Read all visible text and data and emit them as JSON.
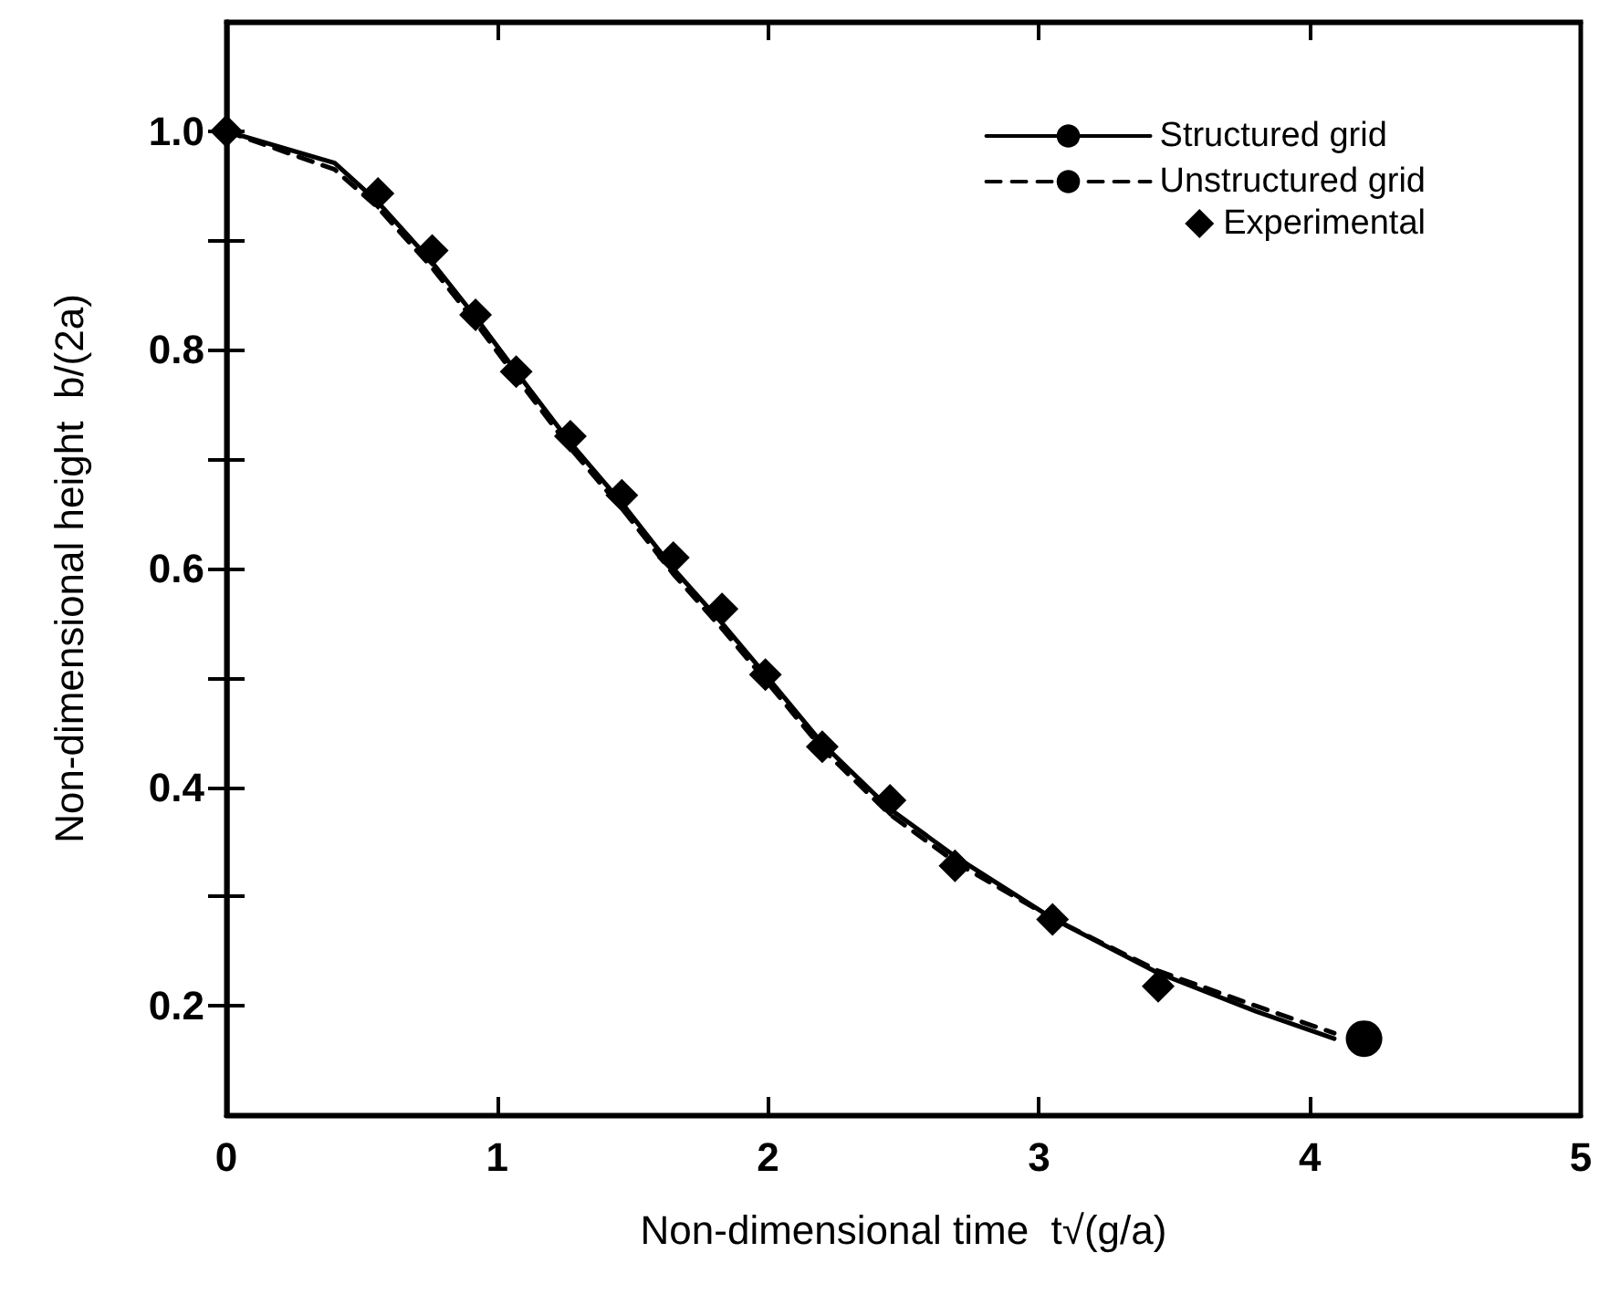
{
  "chart_data": {
    "type": "line",
    "xlabel": "Non-dimensional time  t√(g/a)",
    "ylabel": "Non-dimensional height  b/(2a)",
    "xlim": [
      0,
      5
    ],
    "xticks": [
      0,
      1,
      2,
      3,
      4,
      5
    ],
    "ylim": [
      0.1,
      1.1
    ],
    "yticks": [
      0.2,
      {
        "value": 0.3,
        "label": null
      },
      0.4,
      {
        "value": 0.5,
        "label": null
      },
      0.6,
      {
        "value": 0.7,
        "label": null
      },
      0.8,
      {
        "value": 0.9,
        "label": null
      },
      {
        "value": 1,
        "label": "1.0"
      }
    ],
    "grid": false,
    "legend": "top right",
    "series": [
      {
        "name": "Structured grid",
        "color": "#000000",
        "line_style": "solid",
        "marker": "none",
        "x": [
          0,
          0.4,
          0.56,
          0.76,
          0.92,
          1.07,
          1.27,
          1.46,
          1.65,
          1.83,
          2.0,
          2.2,
          2.45,
          2.7,
          3.05,
          3.44,
          3.8,
          4.09
        ],
        "values": [
          1.0,
          0.971,
          0.935,
          0.88,
          0.83,
          0.78,
          0.715,
          0.66,
          0.6,
          0.55,
          0.5,
          0.44,
          0.38,
          0.335,
          0.28,
          0.23,
          0.195,
          0.17
        ]
      },
      {
        "name": "Unstructured grid",
        "color": "#000000",
        "line_style": "dashed",
        "marker": "none",
        "x": [
          0,
          0.4,
          0.56,
          0.76,
          0.92,
          1.07,
          1.27,
          1.46,
          1.65,
          1.83,
          2.0,
          2.2,
          2.45,
          2.7,
          3.05,
          3.44,
          3.8,
          4.09
        ],
        "values": [
          1.0,
          0.965,
          0.93,
          0.875,
          0.825,
          0.775,
          0.71,
          0.655,
          0.595,
          0.545,
          0.495,
          0.435,
          0.375,
          0.33,
          0.28,
          0.232,
          0.2,
          0.175
        ]
      },
      {
        "name": "Experimental",
        "type": "scatter",
        "color": "#000000",
        "marker": "diamond",
        "x": [
          0,
          0.56,
          0.76,
          0.92,
          1.07,
          1.27,
          1.46,
          1.65,
          1.83,
          1.99,
          2.2,
          2.45,
          2.69,
          3.05,
          3.44
        ],
        "values": [
          1.0,
          0.943,
          0.891,
          0.832,
          0.78,
          0.721,
          0.667,
          0.61,
          0.563,
          0.503,
          0.437,
          0.388,
          0.328,
          0.279,
          0.218
        ]
      },
      {
        "type": "scatter",
        "color": "#000000",
        "marker": "circle",
        "x": [
          4.2
        ],
        "values": [
          0.17
        ]
      }
    ]
  }
}
